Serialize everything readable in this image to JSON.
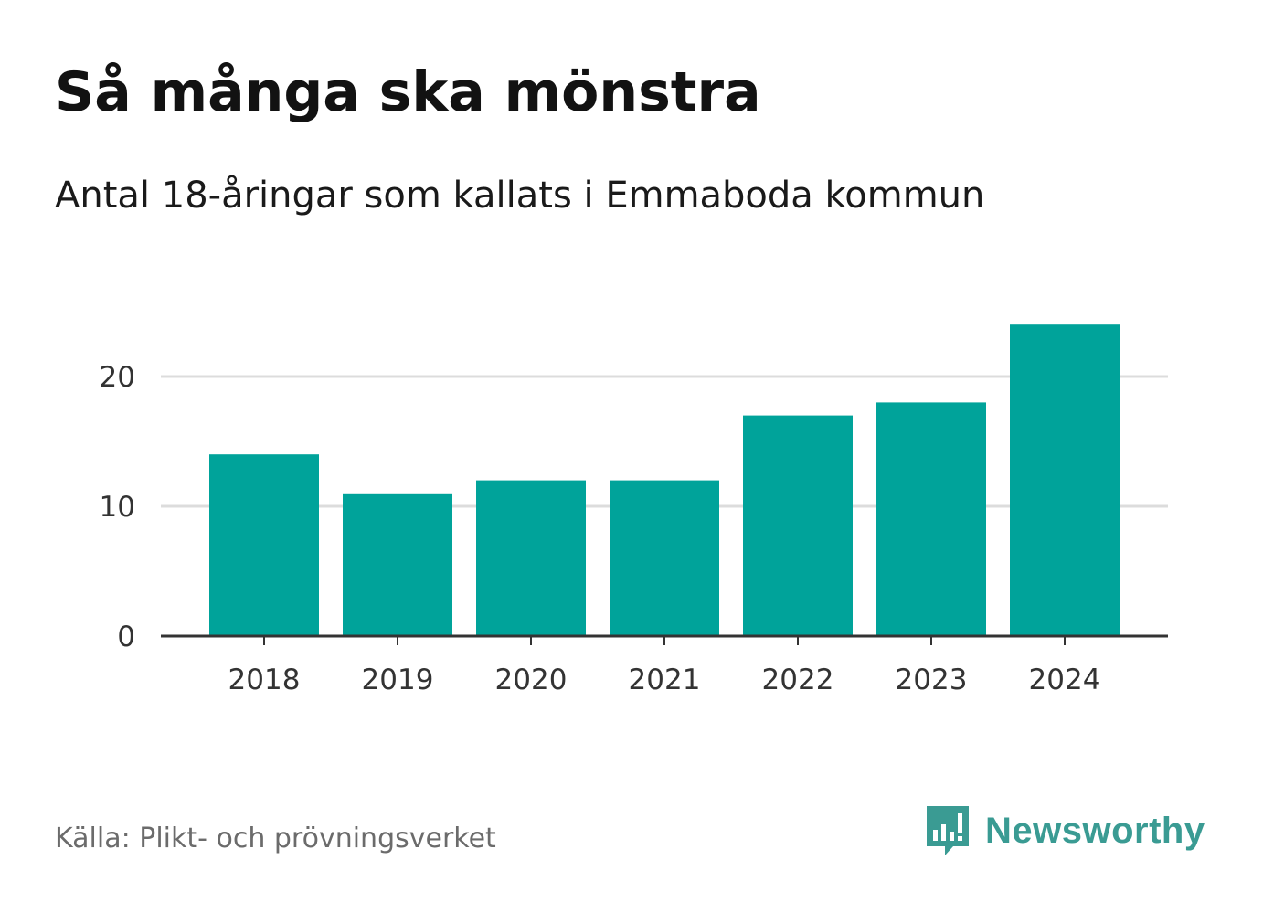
{
  "header": {
    "title": "Så många ska mönstra",
    "subtitle": "Antal 18-åringar som kallats i Emmaboda kommun"
  },
  "footer": {
    "source": "Källa: Plikt- och prövningsverket",
    "brand": "Newsworthy",
    "brand_icon": "newsworthy-logo-icon"
  },
  "colors": {
    "bar": "#00a39a",
    "brand": "#3a9b93",
    "grid": "#dcdcdc",
    "axis": "#333333"
  },
  "chart_data": {
    "type": "bar",
    "title": "Så många ska mönstra",
    "subtitle": "Antal 18-åringar som kallats i Emmaboda kommun",
    "categories": [
      "2018",
      "2019",
      "2020",
      "2021",
      "2022",
      "2023",
      "2024"
    ],
    "values": [
      14,
      11,
      12,
      12,
      17,
      18,
      24
    ],
    "xlabel": "",
    "ylabel": "",
    "ylim": [
      0,
      24
    ],
    "yticks": [
      0,
      10,
      20
    ],
    "grid": true,
    "legend": "none"
  }
}
